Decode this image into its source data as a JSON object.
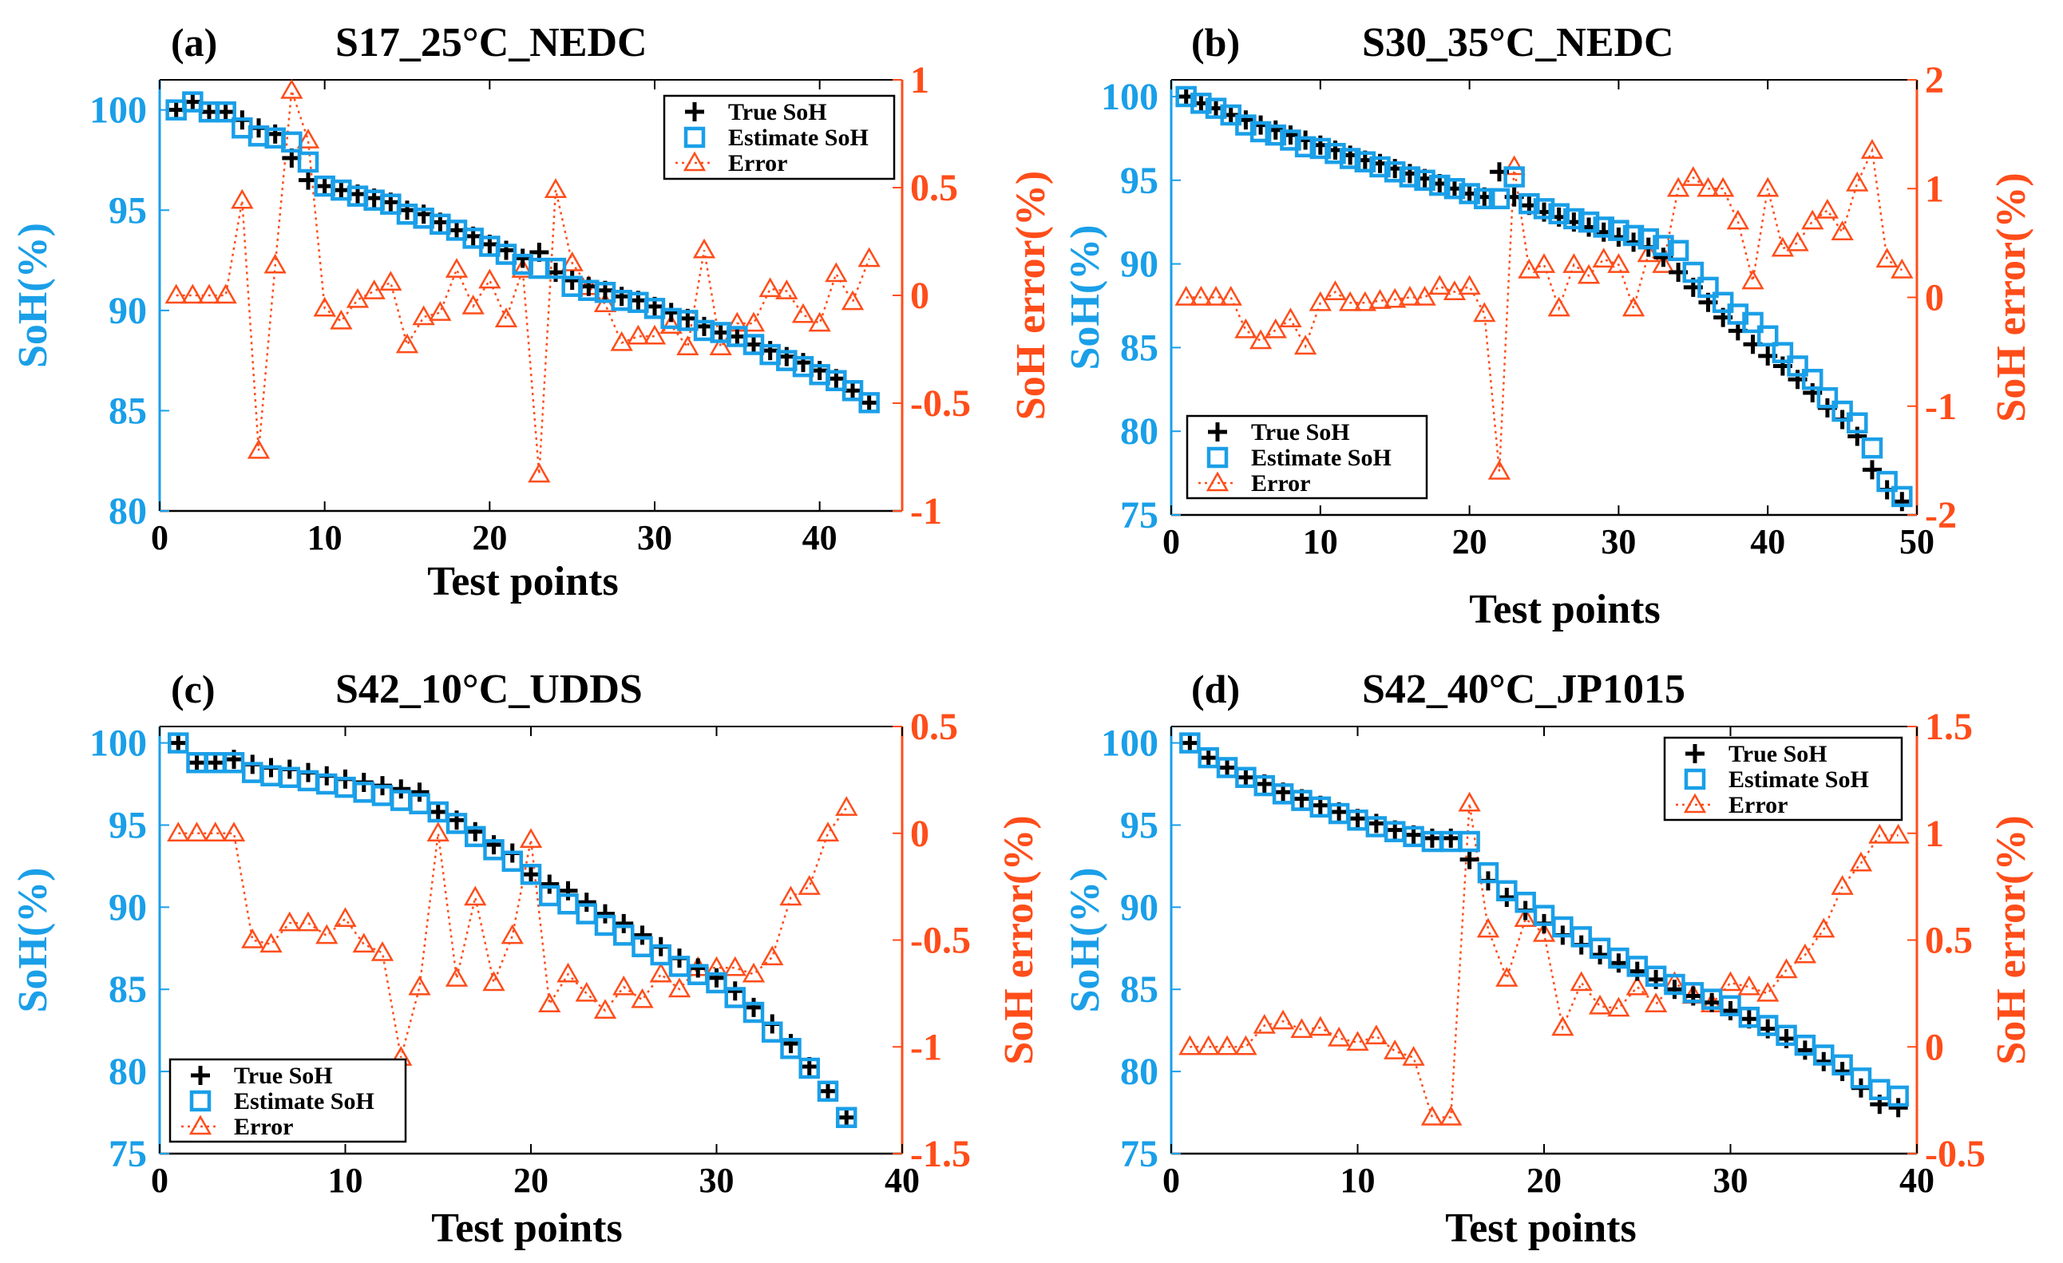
{
  "colors": {
    "soh_axis": "#1a9fe8",
    "error_axis": "#ff4d1a",
    "true_marker": "#000000",
    "estimate_marker": "#1a9fe8",
    "error_marker": "#ff4d1a"
  },
  "chart_data": [
    {
      "type": "line",
      "panel_label": "(a)",
      "title": "S17_25°C_NEDC",
      "xlabel": "Test points",
      "ylabel_left": "SoH(%)",
      "ylabel_right": "SoH error(%)",
      "xlim": [
        0,
        45
      ],
      "xticks": [
        0,
        10,
        20,
        30,
        40
      ],
      "xtick_labels": [
        "0",
        "10",
        "20",
        "30",
        "40"
      ],
      "ylim_left": [
        80,
        101.5
      ],
      "yticks_left": [
        80,
        85,
        90,
        95,
        100
      ],
      "ytick_labels_left": [
        "80",
        "85",
        "90",
        "95",
        "100"
      ],
      "ylim_right": [
        -1,
        1
      ],
      "yticks_right": [
        -1,
        -0.5,
        0,
        0.5,
        1
      ],
      "ytick_labels_right": [
        "-1",
        "-0.5",
        "0",
        "0.5",
        "1"
      ],
      "legend_position": "top-right",
      "legend": [
        "True SoH",
        "Estimate SoH",
        "Error"
      ],
      "x": [
        1,
        2,
        3,
        4,
        5,
        6,
        7,
        8,
        9,
        10,
        11,
        12,
        13,
        14,
        15,
        16,
        17,
        18,
        19,
        20,
        21,
        22,
        23,
        24,
        25,
        26,
        27,
        28,
        29,
        30,
        31,
        32,
        33,
        34,
        35,
        36,
        37,
        38,
        39,
        40,
        41,
        42,
        43
      ],
      "series": [
        {
          "name": "True SoH",
          "axis": "left",
          "marker": "plus",
          "values": [
            100.0,
            100.4,
            99.9,
            99.9,
            99.5,
            99.1,
            98.8,
            97.6,
            96.5,
            96.2,
            96.0,
            95.8,
            95.6,
            95.4,
            95.0,
            94.8,
            94.4,
            94.0,
            93.7,
            93.3,
            93.0,
            92.6,
            92.9,
            91.9,
            91.5,
            91.2,
            91.0,
            90.7,
            90.5,
            90.2,
            89.9,
            89.6,
            89.2,
            88.9,
            88.7,
            88.3,
            88.0,
            87.7,
            87.4,
            87.0,
            86.6,
            86.0,
            85.4
          ]
        },
        {
          "name": "Estimate SoH",
          "axis": "left",
          "marker": "square",
          "values": [
            100.0,
            100.4,
            99.9,
            99.9,
            99.1,
            98.7,
            98.6,
            98.4,
            97.4,
            96.2,
            96.0,
            95.7,
            95.5,
            95.3,
            94.8,
            94.6,
            94.3,
            94.0,
            93.6,
            93.2,
            92.8,
            92.3,
            92.1,
            92.1,
            91.2,
            91.0,
            90.9,
            90.5,
            90.4,
            90.1,
            89.6,
            89.5,
            89.0,
            88.9,
            88.7,
            88.3,
            87.8,
            87.5,
            87.2,
            86.8,
            86.5,
            86.0,
            85.4
          ]
        },
        {
          "name": "Error",
          "axis": "right",
          "marker": "triangle",
          "values": [
            0.0,
            0.0,
            0.0,
            0.0,
            0.44,
            -0.72,
            0.14,
            0.95,
            0.72,
            -0.06,
            -0.12,
            -0.02,
            0.02,
            0.06,
            -0.23,
            -0.1,
            -0.08,
            0.12,
            -0.05,
            0.07,
            -0.11,
            0.12,
            -0.83,
            0.49,
            0.15,
            0.04,
            -0.04,
            -0.22,
            -0.19,
            -0.19,
            -0.14,
            -0.24,
            0.21,
            -0.24,
            -0.13,
            -0.13,
            0.03,
            0.02,
            -0.09,
            -0.13,
            0.1,
            -0.03,
            0.17
          ]
        }
      ]
    },
    {
      "type": "line",
      "panel_label": "(b)",
      "title": "S30_35°C_NEDC",
      "xlabel": "Test points",
      "ylabel_left": "SoH(%)",
      "ylabel_right": "SoH error(%)",
      "xlim": [
        0,
        50
      ],
      "xticks": [
        0,
        10,
        20,
        30,
        40,
        50
      ],
      "xtick_labels": [
        "0",
        "10",
        "20",
        "30",
        "40",
        "50"
      ],
      "ylim_left": [
        75,
        101
      ],
      "yticks_left": [
        75,
        80,
        85,
        90,
        95,
        100
      ],
      "ytick_labels_left": [
        "75",
        "80",
        "85",
        "90",
        "95",
        "100"
      ],
      "ylim_right": [
        -2,
        2
      ],
      "yticks_right": [
        -2,
        -1,
        0,
        1,
        2
      ],
      "ytick_labels_right": [
        "-2",
        "-1",
        "0",
        "1",
        "2"
      ],
      "legend_position": "bottom-left",
      "legend": [
        "True SoH",
        "Estimate SoH",
        "Error"
      ],
      "x": [
        1,
        2,
        3,
        4,
        5,
        6,
        7,
        8,
        9,
        10,
        11,
        12,
        13,
        14,
        15,
        16,
        17,
        18,
        19,
        20,
        21,
        22,
        23,
        24,
        25,
        26,
        27,
        28,
        29,
        30,
        31,
        32,
        33,
        34,
        35,
        36,
        37,
        38,
        39,
        40,
        41,
        42,
        43,
        44,
        45,
        46,
        47,
        48,
        49
      ],
      "series": [
        {
          "name": "True SoH",
          "axis": "left",
          "marker": "plus",
          "values": [
            100.0,
            99.6,
            99.3,
            98.9,
            98.6,
            98.3,
            98.0,
            97.7,
            97.4,
            97.1,
            96.8,
            96.5,
            96.2,
            96.0,
            95.7,
            95.4,
            95.1,
            94.8,
            94.5,
            94.2,
            94.0,
            95.5,
            94.0,
            93.5,
            93.1,
            92.8,
            92.5,
            92.2,
            91.9,
            91.6,
            91.3,
            91.0,
            90.4,
            89.5,
            88.6,
            87.7,
            86.8,
            86.0,
            85.2,
            84.5,
            83.9,
            83.1,
            82.3,
            81.4,
            80.7,
            79.7,
            77.7,
            76.5,
            75.8
          ]
        },
        {
          "name": "Estimate SoH",
          "axis": "left",
          "marker": "square",
          "values": [
            100.0,
            99.6,
            99.3,
            98.9,
            98.3,
            97.9,
            97.7,
            97.4,
            97.0,
            96.9,
            96.6,
            96.3,
            96.1,
            95.8,
            95.5,
            95.2,
            95.0,
            94.7,
            94.5,
            94.2,
            93.9,
            93.9,
            95.2,
            93.6,
            93.3,
            93.0,
            92.7,
            92.5,
            92.2,
            92.0,
            91.7,
            91.5,
            91.1,
            90.8,
            89.5,
            88.6,
            87.7,
            87.0,
            86.5,
            85.7,
            84.7,
            83.9,
            83.1,
            82.0,
            81.2,
            80.5,
            79.0,
            77.0,
            76.1
          ]
        },
        {
          "name": "Error",
          "axis": "right",
          "marker": "triangle",
          "values": [
            0.0,
            0.0,
            0.0,
            0.0,
            -0.3,
            -0.4,
            -0.3,
            -0.2,
            -0.45,
            -0.05,
            0.05,
            -0.05,
            -0.05,
            -0.03,
            -0.02,
            0.0,
            0.0,
            0.1,
            0.05,
            0.1,
            -0.15,
            -1.6,
            1.2,
            0.25,
            0.3,
            -0.1,
            0.3,
            0.2,
            0.35,
            0.3,
            -0.1,
            0.4,
            0.3,
            1.0,
            1.1,
            1.0,
            1.0,
            0.7,
            0.15,
            1.0,
            0.45,
            0.5,
            0.7,
            0.8,
            0.6,
            1.05,
            1.35,
            0.35,
            0.25
          ]
        }
      ]
    },
    {
      "type": "line",
      "panel_label": "(c)",
      "title": "S42_10°C_UDDS",
      "xlabel": "Test points",
      "ylabel_left": "SoH(%)",
      "ylabel_right": "SoH error(%)",
      "xlim": [
        0,
        40
      ],
      "xticks": [
        0,
        10,
        20,
        30,
        40
      ],
      "xtick_labels": [
        "0",
        "10",
        "20",
        "30",
        "40"
      ],
      "ylim_left": [
        75,
        101
      ],
      "yticks_left": [
        75,
        80,
        85,
        90,
        95,
        100
      ],
      "ytick_labels_left": [
        "75",
        "80",
        "85",
        "90",
        "95",
        "100"
      ],
      "ylim_right": [
        -1.5,
        0.5
      ],
      "yticks_right": [
        -1.5,
        -1,
        -0.5,
        0,
        0.5
      ],
      "ytick_labels_right": [
        "-1.5",
        "-1",
        "-0.5",
        "0",
        "0.5"
      ],
      "legend_position": "bottom-left",
      "legend": [
        "True SoH",
        "Estimate SoH",
        "Error"
      ],
      "x": [
        1,
        2,
        3,
        4,
        5,
        6,
        7,
        8,
        9,
        10,
        11,
        12,
        13,
        14,
        15,
        16,
        17,
        18,
        19,
        20,
        21,
        22,
        23,
        24,
        25,
        26,
        27,
        28,
        29,
        30,
        31,
        32,
        33,
        34,
        35,
        36,
        37
      ],
      "series": [
        {
          "name": "True SoH",
          "axis": "left",
          "marker": "plus",
          "values": [
            100.0,
            98.8,
            98.8,
            99.0,
            98.7,
            98.5,
            98.4,
            98.2,
            98.0,
            97.8,
            97.6,
            97.4,
            97.2,
            97.0,
            95.8,
            95.3,
            94.6,
            93.8,
            93.3,
            92.0,
            91.4,
            91.0,
            90.3,
            89.6,
            89.0,
            88.3,
            87.6,
            86.9,
            86.3,
            85.7,
            84.9,
            83.9,
            82.9,
            81.7,
            80.3,
            78.8,
            77.2
          ]
        },
        {
          "name": "Estimate SoH",
          "axis": "left",
          "marker": "square",
          "values": [
            100.0,
            98.8,
            98.8,
            98.8,
            98.2,
            98.0,
            97.9,
            97.7,
            97.5,
            97.3,
            97.0,
            96.8,
            96.5,
            96.3,
            95.8,
            95.1,
            94.3,
            93.5,
            92.8,
            92.0,
            90.7,
            90.2,
            89.6,
            88.9,
            88.3,
            87.6,
            87.1,
            86.4,
            85.9,
            85.4,
            84.5,
            83.6,
            82.4,
            81.4,
            80.2,
            78.8,
            77.2
          ]
        },
        {
          "name": "Error",
          "axis": "right",
          "marker": "triangle",
          "values": [
            0.0,
            0.0,
            0.0,
            0.0,
            -0.5,
            -0.52,
            -0.42,
            -0.42,
            -0.48,
            -0.4,
            -0.52,
            -0.56,
            -1.05,
            -0.72,
            0.0,
            -0.68,
            -0.3,
            -0.7,
            -0.48,
            -0.03,
            -0.8,
            -0.66,
            -0.75,
            -0.83,
            -0.72,
            -0.78,
            -0.66,
            -0.73,
            -0.63,
            -0.63,
            -0.63,
            -0.66,
            -0.58,
            -0.3,
            -0.25,
            0.0,
            0.12
          ]
        }
      ]
    },
    {
      "type": "line",
      "panel_label": "(d)",
      "title": "S42_40°C_JP1015",
      "xlabel": "Test points",
      "ylabel_left": "SoH(%)",
      "ylabel_right": "SoH error(%)",
      "xlim": [
        0,
        40
      ],
      "xticks": [
        0,
        10,
        20,
        30,
        40
      ],
      "xtick_labels": [
        "0",
        "10",
        "20",
        "30",
        "40"
      ],
      "ylim_left": [
        75,
        101
      ],
      "yticks_left": [
        75,
        80,
        85,
        90,
        95,
        100
      ],
      "ytick_labels_left": [
        "75",
        "80",
        "85",
        "90",
        "95",
        "100"
      ],
      "ylim_right": [
        -0.5,
        1.5
      ],
      "yticks_right": [
        -0.5,
        0,
        0.5,
        1,
        1.5
      ],
      "ytick_labels_right": [
        "-0.5",
        "0",
        "0.5",
        "1",
        "1.5"
      ],
      "legend_position": "top-right",
      "legend": [
        "True SoH",
        "Estimate SoH",
        "Error"
      ],
      "x": [
        1,
        2,
        3,
        4,
        5,
        6,
        7,
        8,
        9,
        10,
        11,
        12,
        13,
        14,
        15,
        16,
        17,
        18,
        19,
        20,
        21,
        22,
        23,
        24,
        25,
        26,
        27,
        28,
        29,
        30,
        31,
        32,
        33,
        34,
        35,
        36,
        37,
        38,
        39
      ],
      "series": [
        {
          "name": "True SoH",
          "axis": "left",
          "marker": "plus",
          "values": [
            100.0,
            99.1,
            98.5,
            97.9,
            97.5,
            97.0,
            96.6,
            96.2,
            95.8,
            95.4,
            95.1,
            94.7,
            94.4,
            94.2,
            94.2,
            92.9,
            91.6,
            90.6,
            89.8,
            89.0,
            88.3,
            87.7,
            87.1,
            86.6,
            86.1,
            85.6,
            85.0,
            84.6,
            84.2,
            83.7,
            83.2,
            82.6,
            82.0,
            81.3,
            80.6,
            80.0,
            79.0,
            78.0,
            77.8
          ]
        },
        {
          "name": "Estimate SoH",
          "axis": "left",
          "marker": "square",
          "values": [
            100.0,
            99.1,
            98.5,
            97.9,
            97.4,
            96.9,
            96.5,
            96.1,
            95.7,
            95.3,
            94.9,
            94.6,
            94.3,
            94.0,
            94.0,
            94.0,
            92.1,
            91.0,
            90.3,
            89.5,
            88.8,
            88.2,
            87.5,
            86.9,
            86.4,
            85.8,
            85.3,
            84.8,
            84.4,
            84.0,
            83.3,
            82.8,
            82.2,
            81.6,
            81.0,
            80.4,
            79.6,
            78.9,
            78.5
          ]
        },
        {
          "name": "Error",
          "axis": "right",
          "marker": "triangle",
          "values": [
            0.0,
            0.0,
            0.0,
            0.0,
            0.1,
            0.12,
            0.08,
            0.09,
            0.04,
            0.02,
            0.05,
            -0.02,
            -0.05,
            -0.33,
            -0.33,
            1.14,
            0.55,
            0.32,
            0.6,
            0.53,
            0.09,
            0.3,
            0.19,
            0.18,
            0.28,
            0.2,
            0.3,
            0.24,
            0.2,
            0.3,
            0.28,
            0.25,
            0.36,
            0.43,
            0.55,
            0.75,
            0.86,
            0.99,
            0.99
          ]
        }
      ]
    }
  ]
}
